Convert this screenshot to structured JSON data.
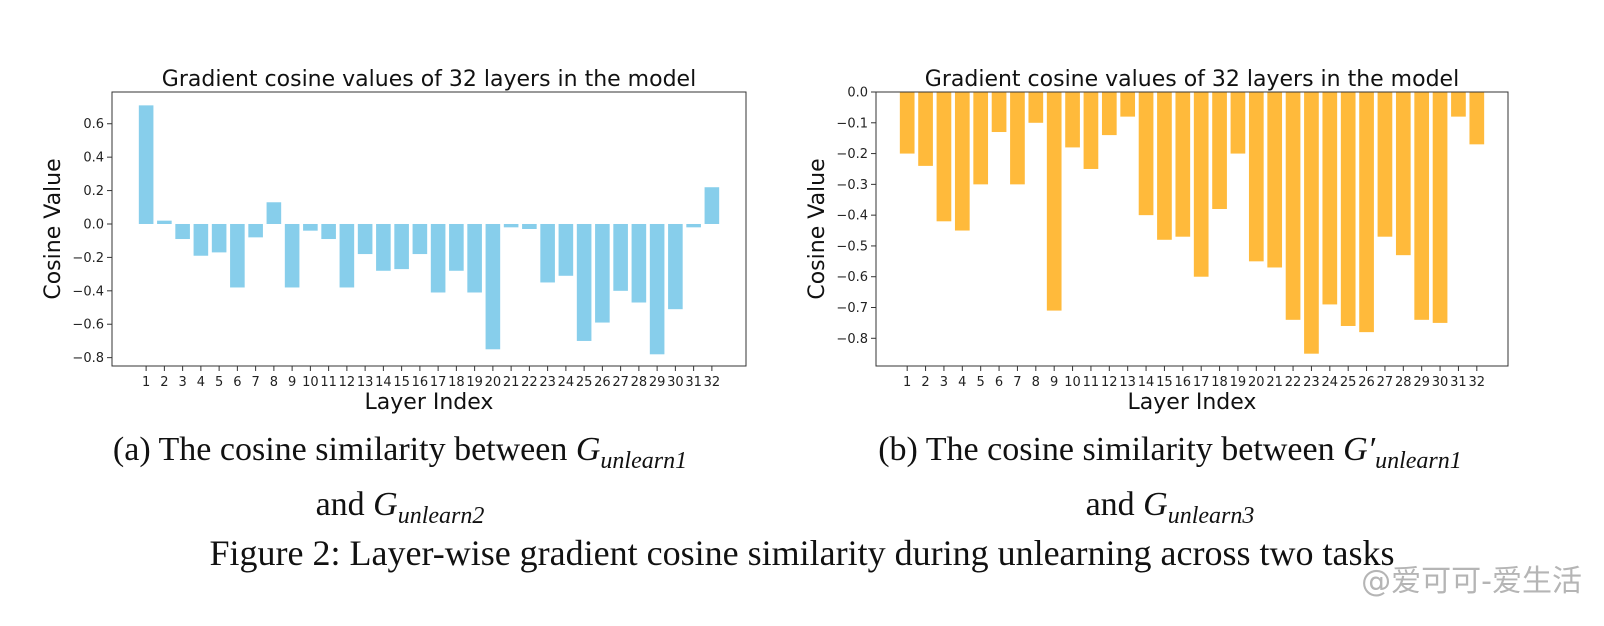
{
  "chart_data": [
    {
      "type": "bar",
      "title": "Gradient cosine values of 32 layers in the model",
      "xlabel": "Layer Index",
      "ylabel": "Cosine Value",
      "categories": [
        "1",
        "2",
        "3",
        "4",
        "5",
        "6",
        "7",
        "8",
        "9",
        "10",
        "11",
        "12",
        "13",
        "14",
        "15",
        "16",
        "17",
        "18",
        "19",
        "20",
        "21",
        "22",
        "23",
        "24",
        "25",
        "26",
        "27",
        "28",
        "29",
        "30",
        "31",
        "32"
      ],
      "values": [
        0.71,
        0.02,
        -0.09,
        -0.19,
        -0.17,
        -0.38,
        -0.08,
        0.13,
        -0.38,
        -0.04,
        -0.09,
        -0.38,
        -0.18,
        -0.28,
        -0.27,
        -0.18,
        -0.41,
        -0.28,
        -0.41,
        -0.75,
        -0.02,
        -0.03,
        -0.35,
        -0.31,
        -0.7,
        -0.59,
        -0.4,
        -0.47,
        -0.78,
        -0.51,
        -0.02,
        0.22
      ],
      "ylim": [
        -0.85,
        0.79
      ],
      "yticks": [
        0.6,
        0.4,
        0.2,
        0.0,
        -0.2,
        -0.4,
        -0.6,
        -0.8
      ],
      "ytick_labels": [
        "0.6",
        "0.4",
        "0.2",
        "0.0",
        "−0.2",
        "−0.4",
        "−0.6",
        "−0.8"
      ],
      "color": "#87ceeb",
      "grid": false
    },
    {
      "type": "bar",
      "title": "Gradient cosine values of 32 layers in the model",
      "xlabel": "Layer Index",
      "ylabel": "Cosine Value",
      "categories": [
        "1",
        "2",
        "3",
        "4",
        "5",
        "6",
        "7",
        "8",
        "9",
        "10",
        "11",
        "12",
        "13",
        "14",
        "15",
        "16",
        "17",
        "18",
        "19",
        "20",
        "21",
        "22",
        "23",
        "24",
        "25",
        "26",
        "27",
        "28",
        "29",
        "30",
        "31",
        "32"
      ],
      "values": [
        -0.2,
        -0.24,
        -0.42,
        -0.45,
        -0.3,
        -0.13,
        -0.3,
        -0.1,
        -0.71,
        -0.18,
        -0.25,
        -0.14,
        -0.08,
        -0.4,
        -0.48,
        -0.47,
        -0.6,
        -0.38,
        -0.2,
        -0.55,
        -0.57,
        -0.74,
        -0.85,
        -0.69,
        -0.76,
        -0.78,
        -0.47,
        -0.53,
        -0.74,
        -0.75,
        -0.08,
        -0.17
      ],
      "ylim": [
        -0.89,
        0.0
      ],
      "yticks": [
        0.0,
        -0.1,
        -0.2,
        -0.3,
        -0.4,
        -0.5,
        -0.6,
        -0.7,
        -0.8
      ],
      "ytick_labels": [
        "0.0",
        "−0.1",
        "−0.2",
        "−0.3",
        "−0.4",
        "−0.5",
        "−0.6",
        "−0.7",
        "−0.8"
      ],
      "color": "#ffba3b",
      "grid": false
    }
  ],
  "captions": {
    "a_prefix": "(a) The cosine similarity between ",
    "a_g1": "G",
    "a_g1_sub": "unlearn1",
    "a_and": "and ",
    "a_g2": "G",
    "a_g2_sub": "unlearn2",
    "b_prefix": "(b) The cosine similarity between ",
    "b_g1": "G′",
    "b_g1_sub": "unlearn1",
    "b_and": "and ",
    "b_g2": "G",
    "b_g2_sub": "unlearn3"
  },
  "figure_caption": "Figure 2: Layer-wise gradient cosine similarity during unlearning across two tasks",
  "watermark": "@爱可可-爱生活"
}
